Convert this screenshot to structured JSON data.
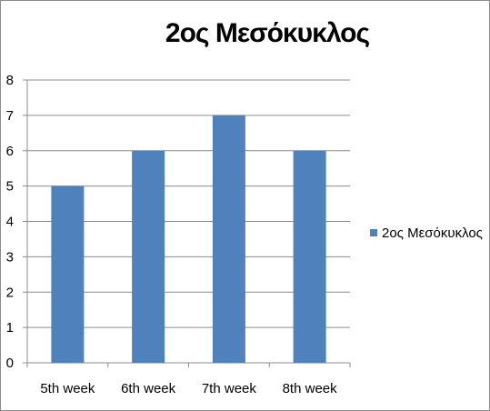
{
  "chart_data": {
    "type": "bar",
    "title": "2ος Μεσόκυκλος",
    "categories": [
      "5th week",
      "6th week",
      "7th week",
      "8th week"
    ],
    "series": [
      {
        "name": "2ος Μεσόκυκλος",
        "values": [
          5,
          6,
          7,
          6
        ],
        "color": "#4F81BD"
      }
    ],
    "ylim": [
      0,
      8
    ],
    "yticks": [
      0,
      1,
      2,
      3,
      4,
      5,
      6,
      7,
      8
    ],
    "grid": true,
    "legend": "right"
  }
}
